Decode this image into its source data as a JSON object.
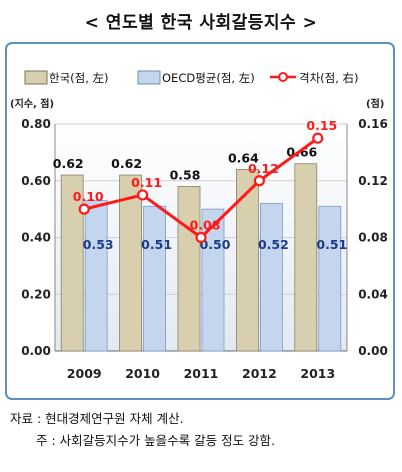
{
  "title": "< 연도별 한국 사회갈등지수 >",
  "notes": [
    "자료 : 현대경제연구원 자체 계산.",
    "주 : 사회갈등지수가 높을수록 갈등 정도 강함."
  ],
  "colors": {
    "korea_bar": "#d8cfae",
    "oecd_bar": "#c3d6ee",
    "gap_line": "#ff1a1a",
    "frame": "#5f8fbf",
    "oecd_label": "#1f3a8a"
  },
  "chart_data": {
    "type": "bar",
    "categories": [
      "2009",
      "2010",
      "2011",
      "2012",
      "2013"
    ],
    "series": [
      {
        "name": "한국(점, 左)",
        "axis": "left",
        "type": "bar",
        "values": [
          0.62,
          0.62,
          0.58,
          0.64,
          0.66
        ]
      },
      {
        "name": "OECD평균(점, 左)",
        "axis": "left",
        "type": "bar",
        "values": [
          0.53,
          0.51,
          0.5,
          0.52,
          0.51
        ]
      },
      {
        "name": "격차(점, 右)",
        "axis": "right",
        "type": "line",
        "values": [
          0.1,
          0.11,
          0.08,
          0.12,
          0.15
        ]
      }
    ],
    "left_axis": {
      "label": "(지수, 점)",
      "ylim": [
        0,
        0.8
      ],
      "ticks": [
        "0.00",
        "0.20",
        "0.40",
        "0.60",
        "0.80"
      ]
    },
    "right_axis": {
      "label": "(점)",
      "ylim": [
        0,
        0.16
      ],
      "ticks": [
        "0.00",
        "0.04",
        "0.08",
        "0.12",
        "0.16"
      ]
    },
    "data_labels": {
      "korea": [
        "0.62",
        "0.62",
        "0.58",
        "0.64",
        "0.66"
      ],
      "oecd": [
        "0.53",
        "0.51",
        "0.50",
        "0.52",
        "0.51"
      ],
      "gap": [
        "0.10",
        "0.11",
        "0.08",
        "0.12",
        "0.15"
      ]
    },
    "legend_position": "top",
    "grid": true
  }
}
